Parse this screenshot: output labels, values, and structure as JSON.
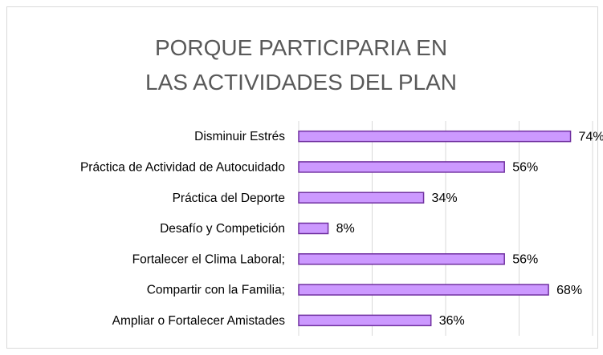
{
  "chart_data": {
    "type": "bar",
    "orientation": "horizontal",
    "title": "PORQUE PARTICIPARIA EN LAS ACTIVIDADES DEL PLAN",
    "categories": [
      "Disminuir Estrés",
      "Práctica de Actividad de Autocuidado",
      "Práctica del Deporte",
      "Desafío y Competición",
      "Fortalecer el Clima Laboral;",
      "Compartir con la Familia;",
      "Ampliar o Fortalecer Amistades"
    ],
    "values": [
      74,
      56,
      34,
      8,
      56,
      68,
      36
    ],
    "value_labels": [
      "74%",
      "56%",
      "34%",
      "8%",
      "56%",
      "68%",
      "36%"
    ],
    "color": "#cc99ff",
    "edge_color": "#7030a0",
    "xlim": [
      0,
      80
    ],
    "xticks": [
      0,
      20,
      40,
      60,
      80
    ],
    "grid": true
  }
}
